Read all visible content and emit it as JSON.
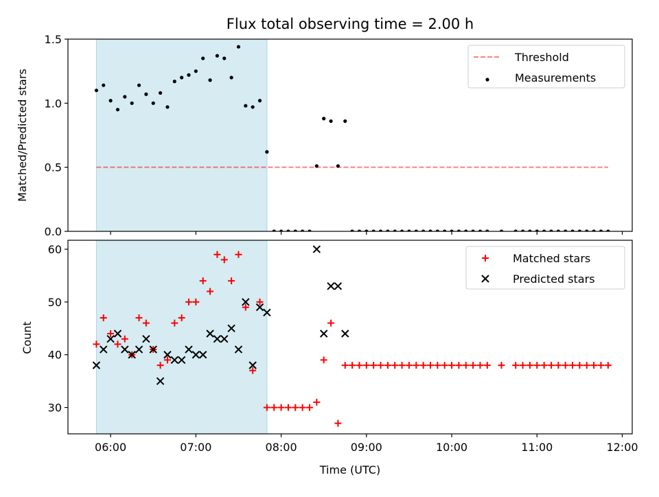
{
  "chart_data": {
    "type": "scatter",
    "title": "Flux total observing time = 2.00 h",
    "xlabel": "Time (UTC)",
    "x_ticks": [
      "06:00",
      "07:00",
      "08:00",
      "09:00",
      "10:00",
      "11:00",
      "12:00"
    ],
    "xlim": [
      "05:30",
      "12:07"
    ],
    "shaded_interval": [
      "05:50",
      "07:50"
    ],
    "colors": {
      "shade": "#add8e6",
      "threshold": "#ff0000",
      "measurements": "#000000",
      "matched": "#ff0000",
      "predicted": "#000000"
    },
    "panels": [
      {
        "ylabel": "Matched/Predicted stars",
        "ylim": [
          0,
          1.5
        ],
        "y_ticks": [
          "0.0",
          "0.5",
          "1.0",
          "1.5"
        ],
        "legend_position": "top-right",
        "series": [
          {
            "name": "Threshold",
            "style": "dashed-line",
            "x": [
              "05:50",
              "11:50"
            ],
            "y": [
              0.5,
              0.5
            ]
          },
          {
            "name": "Measurements",
            "style": "dot",
            "x": [
              "05:50",
              "05:55",
              "06:00",
              "06:05",
              "06:10",
              "06:15",
              "06:20",
              "06:25",
              "06:30",
              "06:35",
              "06:40",
              "06:45",
              "06:50",
              "06:55",
              "07:00",
              "07:05",
              "07:10",
              "07:15",
              "07:20",
              "07:25",
              "07:30",
              "07:35",
              "07:40",
              "07:45",
              "07:50",
              "07:55",
              "08:00",
              "08:05",
              "08:10",
              "08:15",
              "08:20",
              "08:25",
              "08:30",
              "08:35",
              "08:40",
              "08:45",
              "08:50",
              "08:55",
              "09:00",
              "09:05",
              "09:10",
              "09:15",
              "09:20",
              "09:25",
              "09:30",
              "09:35",
              "09:40",
              "09:45",
              "09:50",
              "09:55",
              "10:00",
              "10:05",
              "10:10",
              "10:15",
              "10:20",
              "10:25",
              "10:35",
              "10:45",
              "10:50",
              "10:55",
              "11:00",
              "11:05",
              "11:10",
              "11:15",
              "11:20",
              "11:25",
              "11:30",
              "11:35",
              "11:40",
              "11:45",
              "11:50"
            ],
            "y": [
              1.1,
              1.14,
              1.02,
              0.95,
              1.05,
              1.0,
              1.14,
              1.07,
              1.0,
              1.08,
              0.97,
              1.17,
              1.2,
              1.22,
              1.25,
              1.35,
              1.18,
              1.37,
              1.35,
              1.2,
              1.44,
              0.98,
              0.97,
              1.02,
              0.62,
              0,
              0,
              0,
              0,
              0,
              0,
              0.51,
              0.88,
              0.86,
              0.51,
              0.86,
              0,
              0,
              0,
              0,
              0,
              0,
              0,
              0,
              0,
              0,
              0,
              0,
              0,
              0,
              0,
              0,
              0,
              0,
              0,
              0,
              0,
              0,
              0,
              0,
              0,
              0,
              0,
              0,
              0,
              0,
              0,
              0,
              0,
              0,
              0
            ]
          }
        ]
      },
      {
        "ylabel": "Count",
        "ylim": [
          25,
          61.7
        ],
        "y_ticks": [
          "30",
          "40",
          "50",
          "60"
        ],
        "legend_position": "top-right",
        "series": [
          {
            "name": "Matched stars",
            "style": "plus",
            "x": [
              "05:50",
              "05:55",
              "06:00",
              "06:05",
              "06:10",
              "06:15",
              "06:20",
              "06:25",
              "06:30",
              "06:35",
              "06:40",
              "06:45",
              "06:50",
              "06:55",
              "07:00",
              "07:05",
              "07:10",
              "07:15",
              "07:20",
              "07:25",
              "07:30",
              "07:35",
              "07:40",
              "07:45",
              "07:50",
              "07:55",
              "08:00",
              "08:05",
              "08:10",
              "08:15",
              "08:20",
              "08:25",
              "08:30",
              "08:35",
              "08:40",
              "08:45",
              "08:50",
              "08:55",
              "09:00",
              "09:05",
              "09:10",
              "09:15",
              "09:20",
              "09:25",
              "09:30",
              "09:35",
              "09:40",
              "09:45",
              "09:50",
              "09:55",
              "10:00",
              "10:05",
              "10:10",
              "10:15",
              "10:20",
              "10:25",
              "10:35",
              "10:45",
              "10:50",
              "10:55",
              "11:00",
              "11:05",
              "11:10",
              "11:15",
              "11:20",
              "11:25",
              "11:30",
              "11:35",
              "11:40",
              "11:45",
              "11:50"
            ],
            "y": [
              42,
              47,
              44,
              42,
              43,
              40,
              47,
              46,
              41,
              38,
              39,
              46,
              47,
              50,
              50,
              54,
              52,
              59,
              58,
              54,
              59,
              49,
              37,
              50,
              30,
              30,
              30,
              30,
              30,
              30,
              30,
              31,
              39,
              46,
              27,
              38,
              38,
              38,
              38,
              38,
              38,
              38,
              38,
              38,
              38,
              38,
              38,
              38,
              38,
              38,
              38,
              38,
              38,
              38,
              38,
              38,
              38,
              38,
              38,
              38,
              38,
              38,
              38,
              38,
              38,
              38,
              38,
              38,
              38,
              38,
              38
            ]
          },
          {
            "name": "Predicted stars",
            "style": "x",
            "x": [
              "05:50",
              "05:55",
              "06:00",
              "06:05",
              "06:10",
              "06:15",
              "06:20",
              "06:25",
              "06:30",
              "06:35",
              "06:40",
              "06:45",
              "06:50",
              "06:55",
              "07:00",
              "07:05",
              "07:10",
              "07:15",
              "07:20",
              "07:25",
              "07:30",
              "07:35",
              "07:40",
              "07:45",
              "07:50",
              "08:25",
              "08:30",
              "08:35",
              "08:40",
              "08:45"
            ],
            "y": [
              38,
              41,
              43,
              44,
              41,
              40,
              41,
              43,
              41,
              35,
              40,
              39,
              39,
              41,
              40,
              40,
              44,
              43,
              43,
              45,
              41,
              50,
              38,
              49,
              48,
              60,
              44,
              53,
              53,
              44
            ]
          }
        ]
      }
    ]
  }
}
